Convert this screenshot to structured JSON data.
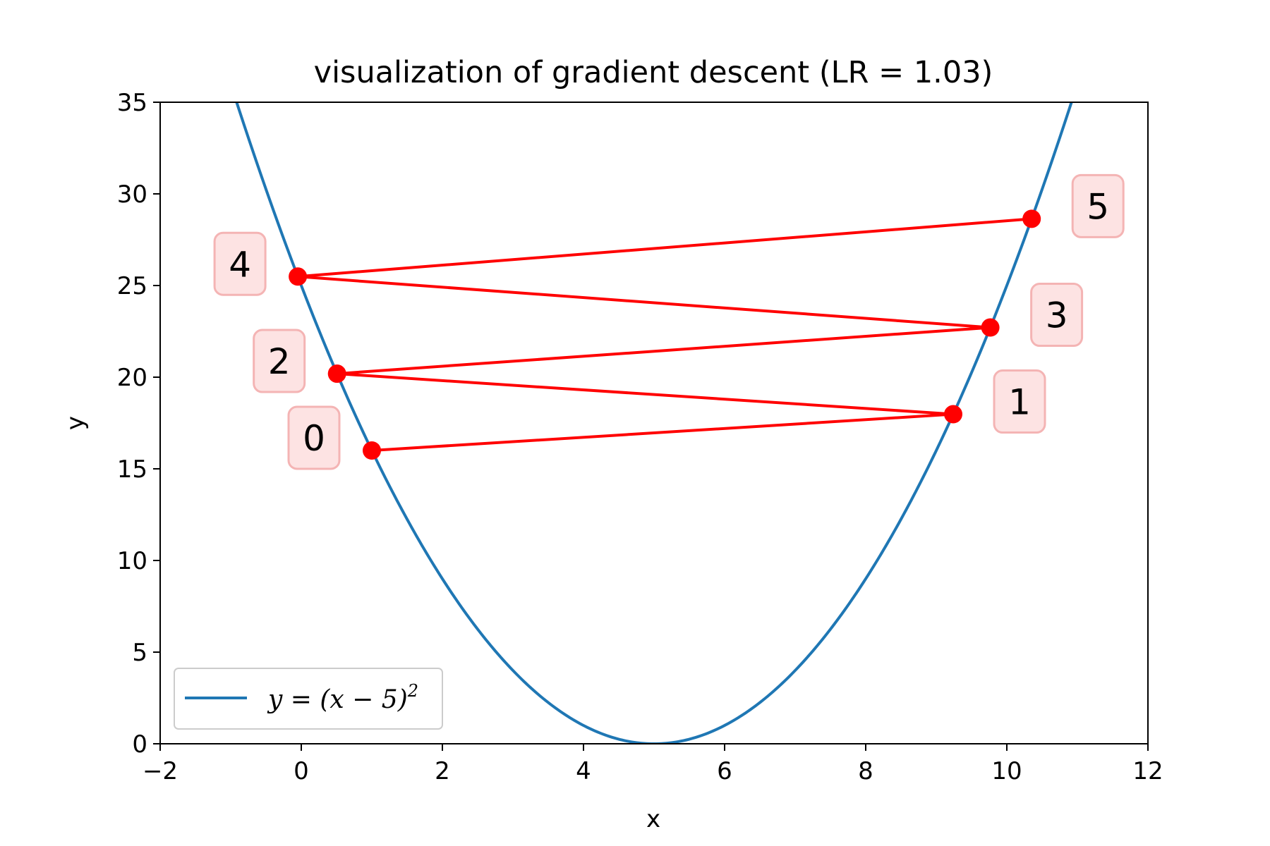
{
  "chart_data": {
    "type": "line",
    "title": "visualization of gradient descent (LR = 1.03)",
    "xlabel": "x",
    "ylabel": "y",
    "xlim": [
      -2,
      12
    ],
    "ylim": [
      0,
      35
    ],
    "xticks": [
      -2,
      0,
      2,
      4,
      6,
      8,
      10,
      12
    ],
    "yticks": [
      0,
      5,
      10,
      15,
      20,
      25,
      30,
      35
    ],
    "xtick_labels": [
      "−2",
      "0",
      "2",
      "4",
      "6",
      "8",
      "10",
      "12"
    ],
    "ytick_labels": [
      "0",
      "5",
      "10",
      "15",
      "20",
      "25",
      "30",
      "35"
    ],
    "grid": false,
    "legend": {
      "position": "lower-left",
      "entry": {
        "prefix": "y = (x − 5)",
        "superscript": "2"
      }
    },
    "curve": {
      "function": "(x-5)^2",
      "x_range": [
        -2,
        12
      ],
      "color": "#1f77b4"
    },
    "descent": {
      "color": "#ff0000",
      "label_box_fill": "#fde3e3",
      "label_box_stroke": "#f4b4b4",
      "points": [
        {
          "step": "0",
          "x": 1.0,
          "y": 16.0
        },
        {
          "step": "1",
          "x": 9.24,
          "y": 17.98
        },
        {
          "step": "2",
          "x": 0.507,
          "y": 20.19
        },
        {
          "step": "3",
          "x": 9.766,
          "y": 22.71
        },
        {
          "step": "4",
          "x": -0.049,
          "y": 25.49
        },
        {
          "step": "5",
          "x": 10.352,
          "y": 28.64
        }
      ]
    }
  }
}
